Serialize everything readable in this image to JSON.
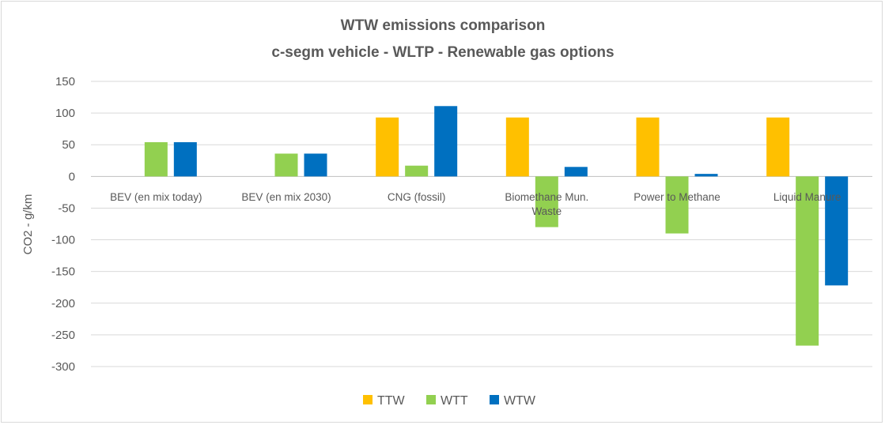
{
  "chart_data": {
    "type": "bar",
    "title": "WTW emissions comparison",
    "subtitle": "c-segm vehicle - WLTP - Renewable gas options",
    "ylabel": "CO2 - g/km",
    "xlabel": "",
    "ylim": [
      -300,
      150
    ],
    "yticks": [
      150,
      100,
      50,
      0,
      -50,
      -100,
      -150,
      -200,
      -250,
      -300
    ],
    "grid": true,
    "legend_position": "bottom",
    "categories": [
      "BEV (en mix today)",
      "BEV (en mix 2030)",
      "CNG (fossil)",
      "Biomethane Mun. Waste",
      "Power to Methane",
      "Liquid Manure"
    ],
    "series": [
      {
        "name": "TTW",
        "color": "#ffc000",
        "values": [
          0,
          0,
          93,
          93,
          93,
          93
        ]
      },
      {
        "name": "WTT",
        "color": "#92d050",
        "values": [
          54,
          36,
          17,
          -80,
          -90,
          -267
        ]
      },
      {
        "name": "WTW",
        "color": "#0070c0",
        "values": [
          54,
          36,
          111,
          15,
          4,
          -172
        ]
      }
    ]
  }
}
